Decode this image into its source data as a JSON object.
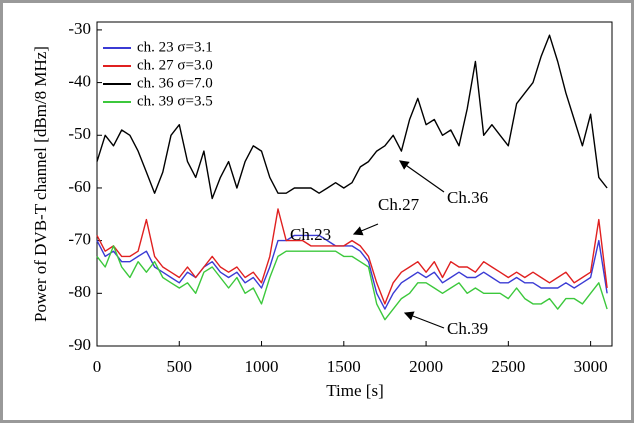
{
  "chart_data": {
    "type": "line",
    "xlabel": "Time [s]",
    "ylabel": "Power of DVB-T channel [dBm/8 MHz]",
    "x": [
      0,
      50,
      100,
      150,
      200,
      250,
      300,
      350,
      400,
      450,
      500,
      550,
      600,
      650,
      700,
      750,
      800,
      850,
      900,
      950,
      1000,
      1050,
      1100,
      1150,
      1200,
      1250,
      1300,
      1350,
      1400,
      1450,
      1500,
      1550,
      1600,
      1650,
      1700,
      1750,
      1800,
      1850,
      1900,
      1950,
      2000,
      2050,
      2100,
      2150,
      2200,
      2250,
      2300,
      2350,
      2400,
      2450,
      2500,
      2550,
      2600,
      2650,
      2700,
      2750,
      2800,
      2850,
      2900,
      2950,
      3000,
      3050,
      3100
    ],
    "series": [
      {
        "name": "ch. 23 σ=3.1",
        "color": "#3b3bd4",
        "values": [
          -70,
          -73,
          -72,
          -74,
          -74,
          -73,
          -72,
          -75,
          -76,
          -77,
          -78,
          -76,
          -77,
          -75,
          -74,
          -76,
          -77,
          -76,
          -78,
          -77,
          -79,
          -75,
          -70,
          -70,
          -69,
          -69,
          -69,
          -69,
          -70,
          -71,
          -71,
          -71,
          -72,
          -74,
          -80,
          -83,
          -80,
          -78,
          -77,
          -76,
          -77,
          -76,
          -78,
          -77,
          -76,
          -77,
          -77,
          -76,
          -77,
          -78,
          -78,
          -77,
          -78,
          -78,
          -79,
          -79,
          -79,
          -78,
          -79,
          -78,
          -77,
          -70,
          -80
        ]
      },
      {
        "name": "ch. 27 σ=3.0",
        "color": "#e02020",
        "values": [
          -69,
          -72,
          -71,
          -73,
          -73,
          -72,
          -66,
          -73,
          -75,
          -76,
          -77,
          -75,
          -77,
          -75,
          -73,
          -75,
          -76,
          -75,
          -77,
          -76,
          -78,
          -73,
          -64,
          -70,
          -70,
          -70,
          -71,
          -71,
          -71,
          -71,
          -71,
          -70,
          -71,
          -73,
          -78,
          -82,
          -78,
          -76,
          -75,
          -74,
          -76,
          -74,
          -77,
          -74,
          -75,
          -75,
          -76,
          -74,
          -75,
          -76,
          -77,
          -76,
          -77,
          -76,
          -77,
          -78,
          -77,
          -76,
          -78,
          -77,
          -76,
          -66,
          -79
        ]
      },
      {
        "name": "ch. 36 σ=7.0",
        "color": "#000000",
        "values": [
          -55,
          -50,
          -52,
          -49,
          -50,
          -53,
          -57,
          -61,
          -57,
          -50,
          -48,
          -55,
          -58,
          -53,
          -62,
          -58,
          -55,
          -60,
          -55,
          -52,
          -53,
          -58,
          -61,
          -61,
          -60,
          -60,
          -60,
          -61,
          -60,
          -59,
          -60,
          -59,
          -56,
          -55,
          -53,
          -52,
          -50,
          -53,
          -47,
          -43,
          -48,
          -47,
          -50,
          -49,
          -52,
          -45,
          -36,
          -50,
          -48,
          -50,
          -52,
          -44,
          -42,
          -40,
          -35,
          -31,
          -36,
          -42,
          -47,
          -52,
          -46,
          -58,
          -60
        ]
      },
      {
        "name": "ch. 39 σ=3.5",
        "color": "#3cc83c",
        "values": [
          -73,
          -75,
          -71,
          -75,
          -77,
          -74,
          -76,
          -74,
          -77,
          -78,
          -79,
          -78,
          -80,
          -76,
          -75,
          -77,
          -79,
          -77,
          -80,
          -79,
          -82,
          -77,
          -73,
          -72,
          -72,
          -72,
          -72,
          -72,
          -72,
          -72,
          -73,
          -73,
          -74,
          -75,
          -82,
          -85,
          -83,
          -81,
          -80,
          -78,
          -78,
          -79,
          -80,
          -79,
          -78,
          -80,
          -79,
          -80,
          -80,
          -80,
          -81,
          -79,
          -81,
          -82,
          -82,
          -81,
          -83,
          -81,
          -81,
          -82,
          -80,
          -78,
          -83
        ]
      }
    ],
    "annotations": [
      "Ch.23",
      "Ch.27",
      "Ch.36",
      "Ch.39"
    ],
    "xlim": [
      0,
      3130
    ],
    "ylim": [
      -90,
      -28.5
    ],
    "xticks": [
      0,
      500,
      1000,
      1500,
      2000,
      2500,
      3000
    ],
    "yticks": [
      -90,
      -80,
      -70,
      -60,
      -50,
      -40,
      -30
    ],
    "legend": "upper-left"
  }
}
